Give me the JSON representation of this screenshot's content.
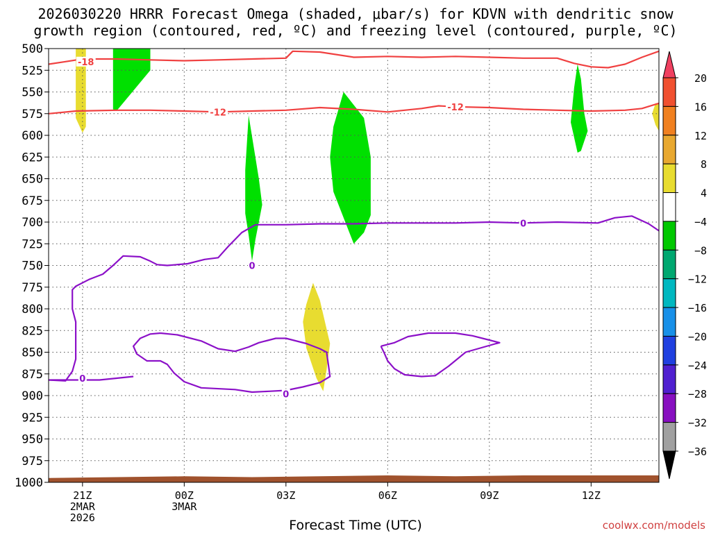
{
  "chart_data": {
    "type": "heatmap",
    "title_line1": "2026030220 HRRR Forecast Omega (shaded, μbar/s) for KDVN with dendritic snow",
    "title_line2": "growth region (contoured, red, ºC) and freezing level (contoured, purple, ºC)",
    "xlabel": "Forecast Time (UTC)",
    "credit": "coolwx.com/models",
    "y_axis": {
      "label": "",
      "reversed": true,
      "range": [
        500,
        1000
      ],
      "ticks": [
        500,
        525,
        550,
        575,
        600,
        625,
        650,
        675,
        700,
        725,
        750,
        775,
        800,
        825,
        850,
        875,
        900,
        925,
        950,
        975,
        1000
      ],
      "tick_labels": [
        "500",
        "525",
        "550",
        "575",
        "600",
        "625",
        "650",
        "675",
        "700",
        "725",
        "750",
        "775",
        "800",
        "825",
        "850",
        "875",
        "900",
        "925",
        "950",
        "975",
        "1000"
      ]
    },
    "x_axis": {
      "range_hours": [
        -1,
        17
      ],
      "ticks": [
        {
          "hour": 0,
          "lines": [
            "21Z",
            "2MAR",
            "2026"
          ]
        },
        {
          "hour": 3,
          "lines": [
            "00Z",
            "3MAR"
          ]
        },
        {
          "hour": 6,
          "lines": [
            "03Z"
          ]
        },
        {
          "hour": 9,
          "lines": [
            "06Z"
          ]
        },
        {
          "hour": 12,
          "lines": [
            "09Z"
          ]
        },
        {
          "hour": 15,
          "lines": [
            "12Z"
          ]
        }
      ]
    },
    "grid": "dotted",
    "colorbar": {
      "position": "right",
      "levels": [
        20,
        16,
        12,
        8,
        4,
        -4,
        -8,
        -12,
        -16,
        -20,
        -24,
        -28,
        -32,
        -36
      ],
      "colors": [
        "#f04060",
        "#f05030",
        "#f08020",
        "#e8a830",
        "#e8dc30",
        "#ffffff",
        "#00c800",
        "#00a870",
        "#00b8c0",
        "#1890e8",
        "#2040e0",
        "#5020d0",
        "#8810c0",
        "#a0a0a0",
        "#000000"
      ]
    },
    "omega_regions": [
      {
        "value": "4 to 8",
        "color": "#e8dc30",
        "points": [
          [
            -0.2,
            500
          ],
          [
            0.1,
            500
          ],
          [
            0.1,
            560
          ],
          [
            0.1,
            590
          ],
          [
            0.0,
            597
          ],
          [
            -0.2,
            580
          ],
          [
            -0.2,
            540
          ]
        ]
      },
      {
        "value": "-4 to -8",
        "color": "#00e000",
        "points": [
          [
            0.9,
            500
          ],
          [
            2.0,
            500
          ],
          [
            2.0,
            525
          ],
          [
            1.0,
            572
          ],
          [
            0.9,
            570
          ]
        ]
      },
      {
        "value": "-4 to -8",
        "color": "#00e000",
        "points": [
          [
            4.9,
            577
          ],
          [
            5.2,
            650
          ],
          [
            5.3,
            680
          ],
          [
            5.1,
            720
          ],
          [
            5.0,
            745
          ],
          [
            4.9,
            715
          ],
          [
            4.8,
            690
          ],
          [
            4.8,
            640
          ]
        ]
      },
      {
        "value": "-4 to -8",
        "color": "#00e000",
        "points": [
          [
            7.7,
            550
          ],
          [
            8.0,
            565
          ],
          [
            8.3,
            580
          ],
          [
            8.5,
            625
          ],
          [
            8.5,
            692
          ],
          [
            8.3,
            712
          ],
          [
            8.0,
            725
          ],
          [
            7.4,
            665
          ],
          [
            7.3,
            625
          ],
          [
            7.4,
            590
          ]
        ]
      },
      {
        "value": "-4 to -8",
        "color": "#00e000",
        "points": [
          [
            14.6,
            518
          ],
          [
            14.7,
            535
          ],
          [
            14.8,
            575
          ],
          [
            14.9,
            595
          ],
          [
            14.7,
            618
          ],
          [
            14.6,
            620
          ],
          [
            14.4,
            585
          ],
          [
            14.5,
            545
          ]
        ]
      },
      {
        "value": "4 to 8",
        "color": "#e8dc30",
        "points": [
          [
            6.8,
            770
          ],
          [
            7.0,
            790
          ],
          [
            7.3,
            840
          ],
          [
            7.2,
            870
          ],
          [
            7.1,
            895
          ],
          [
            6.9,
            880
          ],
          [
            6.6,
            845
          ],
          [
            6.5,
            815
          ],
          [
            6.6,
            795
          ]
        ]
      },
      {
        "value": "4 to 8",
        "color": "#e8dc30",
        "points": [
          [
            16.9,
            563
          ],
          [
            17.0,
            563
          ],
          [
            17.0,
            595
          ],
          [
            16.9,
            588
          ],
          [
            16.8,
            575
          ]
        ]
      }
    ],
    "dgz_contours": [
      {
        "label": "-18",
        "label_at": [
          0.1,
          515
        ],
        "color": "#f04040",
        "points": [
          [
            -1,
            518
          ],
          [
            -0.5,
            515
          ],
          [
            0,
            512
          ],
          [
            1,
            512
          ],
          [
            2,
            513
          ],
          [
            3,
            514
          ],
          [
            4,
            513
          ],
          [
            5,
            512
          ],
          [
            6,
            511
          ],
          [
            6.2,
            503
          ],
          [
            7,
            504
          ],
          [
            8,
            510
          ],
          [
            9,
            509
          ],
          [
            10,
            510
          ],
          [
            11,
            509
          ],
          [
            12,
            510
          ],
          [
            13,
            511
          ],
          [
            14,
            511
          ],
          [
            14.5,
            517
          ],
          [
            15,
            521
          ],
          [
            15.5,
            522
          ],
          [
            16,
            518
          ],
          [
            16.5,
            510
          ],
          [
            17,
            503
          ]
        ]
      },
      {
        "label": "-12",
        "label_at": [
          4.0,
          573
        ],
        "label2": "-12",
        "label2_at": [
          11.0,
          567
        ],
        "color": "#f04040",
        "points": [
          [
            -1,
            575
          ],
          [
            -0.2,
            572
          ],
          [
            1,
            571
          ],
          [
            2,
            571
          ],
          [
            3,
            572
          ],
          [
            4,
            573
          ],
          [
            5,
            572
          ],
          [
            6,
            571
          ],
          [
            7,
            568
          ],
          [
            8,
            570
          ],
          [
            9,
            573
          ],
          [
            10,
            569
          ],
          [
            10.5,
            566
          ],
          [
            11,
            567
          ],
          [
            12,
            568
          ],
          [
            13,
            570
          ],
          [
            14,
            571
          ],
          [
            15,
            572
          ],
          [
            16,
            571
          ],
          [
            16.5,
            569
          ],
          [
            17,
            563
          ]
        ]
      }
    ],
    "freezing_contours": [
      {
        "label": "0",
        "label_at": [
          5.0,
          750
        ],
        "label2": "0",
        "label2_at": [
          13.0,
          701
        ],
        "color": "#8b10c8",
        "points": [
          [
            17,
            710
          ],
          [
            16.7,
            702
          ],
          [
            16.2,
            693
          ],
          [
            15.7,
            695
          ],
          [
            15.2,
            701
          ],
          [
            14,
            700
          ],
          [
            13,
            701
          ],
          [
            12,
            700
          ],
          [
            11,
            701
          ],
          [
            10,
            701
          ],
          [
            9,
            701
          ],
          [
            8,
            702
          ],
          [
            7,
            702
          ],
          [
            6,
            703
          ],
          [
            5.1,
            703
          ],
          [
            4.7,
            712
          ],
          [
            4.3,
            728
          ],
          [
            4.0,
            741
          ],
          [
            3.6,
            743
          ],
          [
            3.1,
            748
          ],
          [
            2.5,
            750
          ],
          [
            2.2,
            749
          ],
          [
            2.0,
            745
          ],
          [
            1.7,
            740
          ],
          [
            1.2,
            739
          ],
          [
            0.9,
            750
          ],
          [
            0.6,
            760
          ],
          [
            0.2,
            766
          ],
          [
            -0.2,
            774
          ],
          [
            -0.3,
            778
          ],
          [
            -0.3,
            800
          ],
          [
            -0.2,
            815
          ],
          [
            -0.2,
            840
          ],
          [
            -0.2,
            858
          ],
          [
            -0.3,
            872
          ],
          [
            -0.5,
            883
          ],
          [
            -1,
            882
          ]
        ]
      },
      {
        "label": "0",
        "label_at": [
          0.0,
          880
        ],
        "color": "#8b10c8",
        "points": [
          [
            -1,
            882
          ],
          [
            -0.5,
            882
          ],
          [
            0,
            882
          ],
          [
            0.5,
            882
          ],
          [
            1,
            880
          ],
          [
            1.5,
            878
          ]
        ]
      },
      {
        "label": "0",
        "label_at": [
          6.0,
          898
        ],
        "color": "#8b10c8",
        "points": [
          [
            2.3,
            828
          ],
          [
            2.0,
            829
          ],
          [
            1.7,
            834
          ],
          [
            1.5,
            843
          ],
          [
            1.6,
            852
          ],
          [
            1.9,
            860
          ],
          [
            2.3,
            860
          ],
          [
            2.5,
            864
          ],
          [
            2.7,
            874
          ],
          [
            3.0,
            884
          ],
          [
            3.5,
            891
          ],
          [
            4.5,
            893
          ],
          [
            5.0,
            896
          ],
          [
            5.5,
            895
          ],
          [
            6,
            894
          ],
          [
            6.5,
            890
          ],
          [
            7.0,
            885
          ],
          [
            7.3,
            878
          ],
          [
            7.2,
            850
          ],
          [
            7.0,
            846
          ],
          [
            6.6,
            840
          ],
          [
            6.0,
            834
          ],
          [
            5.7,
            834
          ],
          [
            5.2,
            839
          ],
          [
            4.9,
            844
          ],
          [
            4.5,
            849
          ],
          [
            4.0,
            846
          ],
          [
            3.5,
            837
          ],
          [
            2.8,
            830
          ],
          [
            2.3,
            828
          ]
        ]
      },
      {
        "label": "",
        "color": "#8b10c8",
        "points": [
          [
            8.8,
            843
          ],
          [
            9.2,
            839
          ],
          [
            9.6,
            832
          ],
          [
            10.2,
            828
          ],
          [
            11.0,
            828
          ],
          [
            11.5,
            831
          ],
          [
            12.0,
            836
          ],
          [
            12.3,
            839
          ],
          [
            12.2,
            840
          ],
          [
            11.3,
            850
          ],
          [
            10.8,
            866
          ],
          [
            10.4,
            877
          ],
          [
            10.0,
            878
          ],
          [
            9.5,
            876
          ],
          [
            9.2,
            869
          ],
          [
            9.0,
            860
          ],
          [
            8.9,
            851
          ],
          [
            8.8,
            843
          ]
        ]
      }
    ],
    "terrain": {
      "color": "#a0522d",
      "points": [
        [
          -1,
          995
        ],
        [
          1,
          994
        ],
        [
          3,
          993
        ],
        [
          5,
          994
        ],
        [
          7,
          993
        ],
        [
          9,
          992
        ],
        [
          11,
          993
        ],
        [
          13,
          992
        ],
        [
          15,
          992
        ],
        [
          17,
          992
        ]
      ]
    }
  }
}
